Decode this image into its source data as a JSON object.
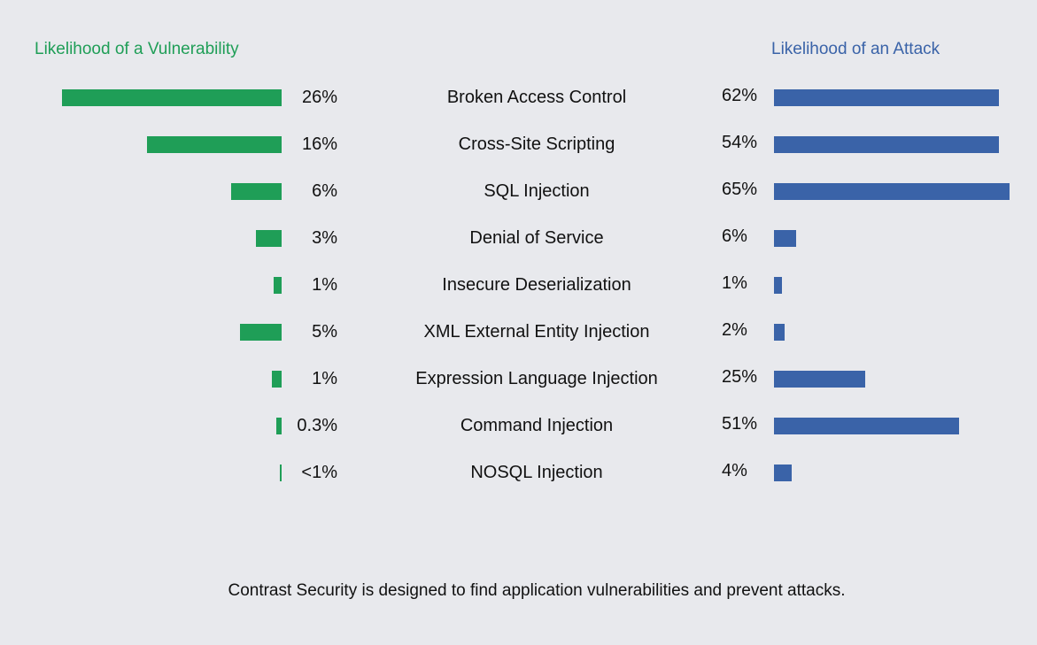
{
  "colors": {
    "vulnerability": "#1f9e57",
    "attack": "#3a63a8",
    "background": "#e8e9ed"
  },
  "footer": "Contrast Security is designed to find application vulnerabilities and prevent attacks.",
  "chart_data": {
    "type": "bar",
    "layout": "butterfly",
    "left_title": "Likelihood of a Vulnerability",
    "right_title": "Likelihood of an Attack",
    "categories": [
      "Broken Access Control",
      "Cross-Site Scripting",
      "SQL Injection",
      "Denial of Service",
      "Insecure Deserialization",
      "XML External Entity Injection",
      "Expression Language Injection",
      "Command Injection",
      "NOSQL Injection"
    ],
    "series": [
      {
        "name": "Likelihood of a Vulnerability",
        "labels": [
          "26%",
          "16%",
          "6%",
          "3%",
          "1%",
          "5%",
          "1%",
          "0.3%",
          "<1%"
        ],
        "values": [
          26,
          16,
          6,
          3,
          1,
          5,
          1,
          0.3,
          0.1
        ]
      },
      {
        "name": "Likelihood of an Attack",
        "labels": [
          "62%",
          "54%",
          "65%",
          "6%",
          "1%",
          "2%",
          "25%",
          "51%",
          "4%"
        ],
        "values": [
          62,
          54,
          65,
          6,
          1,
          2,
          25,
          51,
          4
        ]
      }
    ],
    "bar_fill_fraction": {
      "vulnerability": [
        1.0,
        0.613,
        0.23,
        0.117,
        0.036,
        0.19,
        0.044,
        0.024,
        0.008
      ],
      "attack": [
        0.955,
        0.955,
        1.0,
        0.094,
        0.034,
        0.045,
        0.387,
        0.786,
        0.075
      ]
    }
  }
}
